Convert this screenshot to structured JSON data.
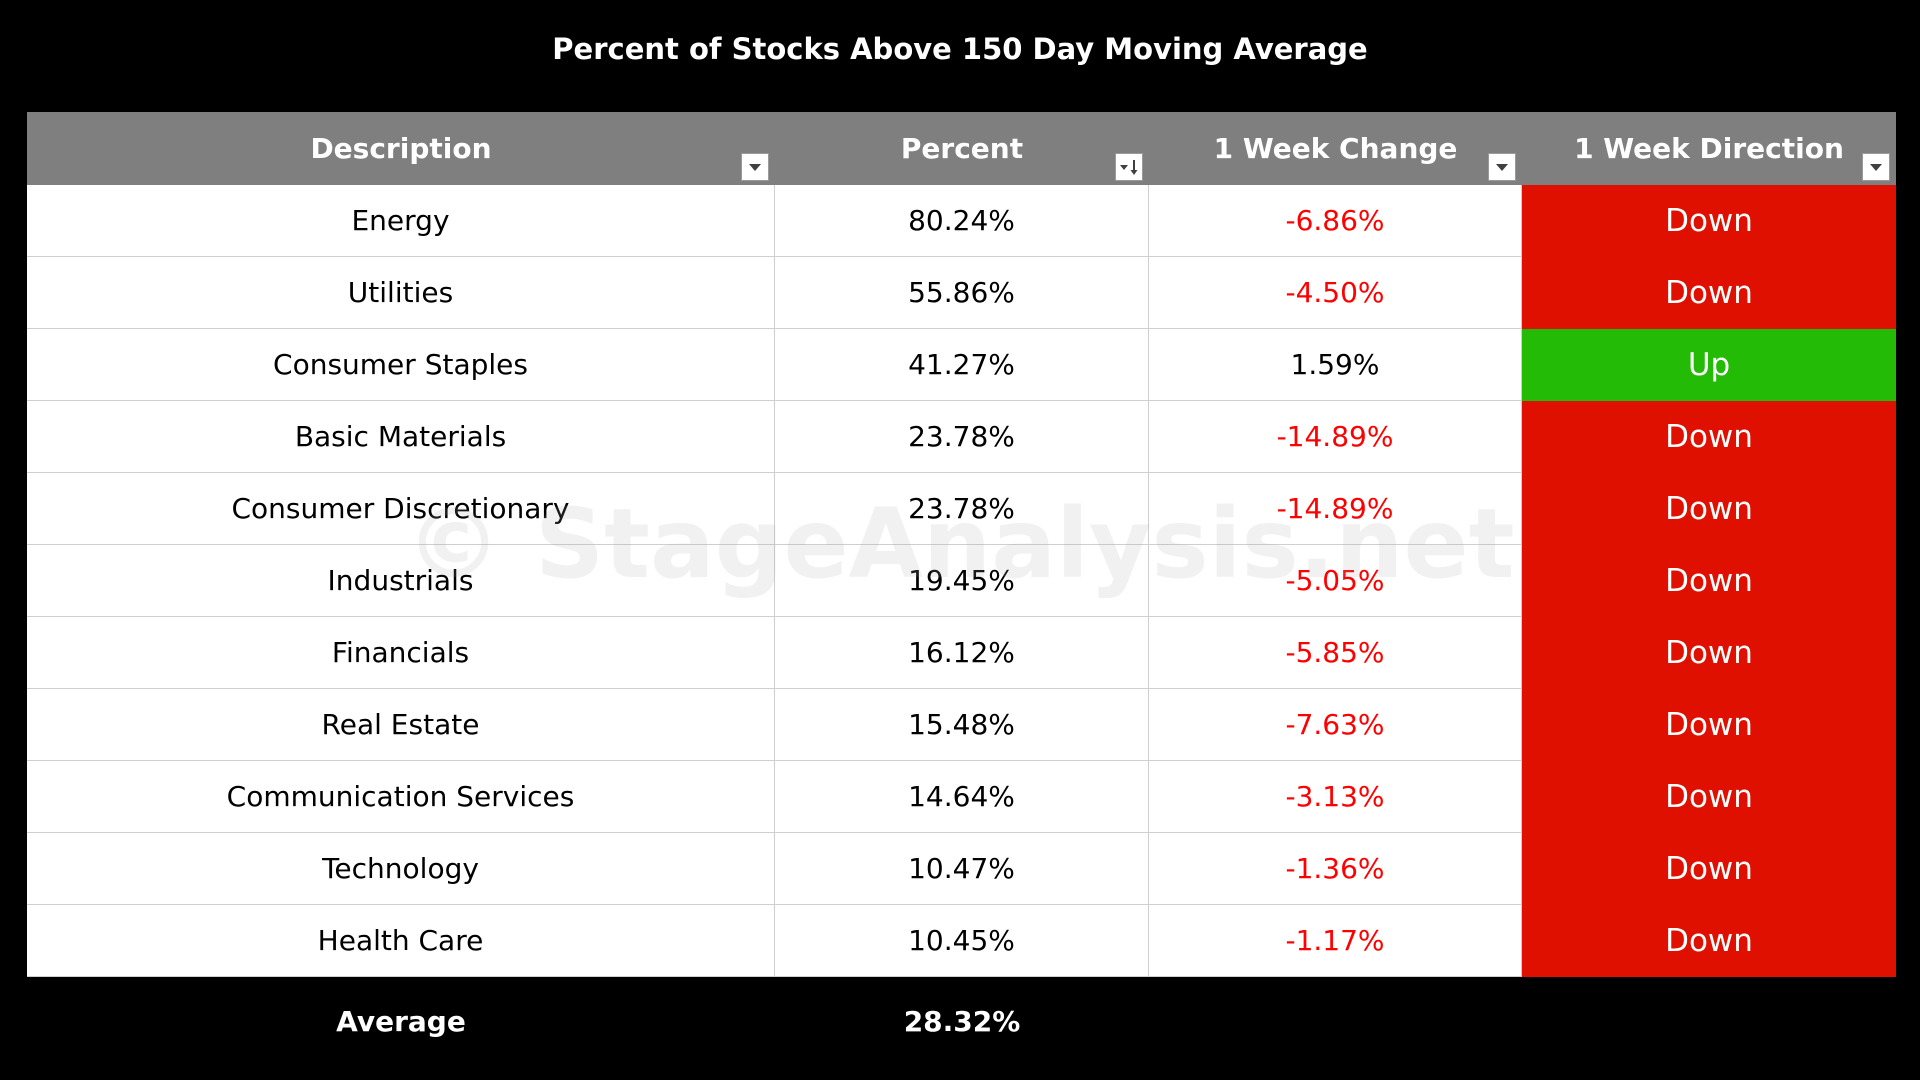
{
  "chart_data": {
    "type": "table",
    "title": "Percent of Stocks Above 150 Day Moving Average",
    "columns": [
      "Description",
      "Percent",
      "1 Week Change",
      "1 Week Direction"
    ],
    "rows": [
      {
        "description": "Energy",
        "percent": "80.24%",
        "change": "-6.86%",
        "direction": "Down"
      },
      {
        "description": "Utilities",
        "percent": "55.86%",
        "change": "-4.50%",
        "direction": "Down"
      },
      {
        "description": "Consumer Staples",
        "percent": "41.27%",
        "change": "1.59%",
        "direction": "Up"
      },
      {
        "description": "Basic Materials",
        "percent": "23.78%",
        "change": "-14.89%",
        "direction": "Down"
      },
      {
        "description": "Consumer Discretionary",
        "percent": "23.78%",
        "change": "-14.89%",
        "direction": "Down"
      },
      {
        "description": "Industrials",
        "percent": "19.45%",
        "change": "-5.05%",
        "direction": "Down"
      },
      {
        "description": "Financials",
        "percent": "16.12%",
        "change": "-5.85%",
        "direction": "Down"
      },
      {
        "description": "Real Estate",
        "percent": "15.48%",
        "change": "-7.63%",
        "direction": "Down"
      },
      {
        "description": "Communication Services",
        "percent": "14.64%",
        "change": "-3.13%",
        "direction": "Down"
      },
      {
        "description": "Technology",
        "percent": "10.47%",
        "change": "-1.36%",
        "direction": "Down"
      },
      {
        "description": "Health Care",
        "percent": "10.45%",
        "change": "-1.17%",
        "direction": "Down"
      }
    ],
    "average": {
      "label": "Average",
      "percent": "28.32%"
    },
    "watermark": "© StageAnalysis.net",
    "colors": {
      "header_bg": "#7f7f7f",
      "down_bg": "#e01000",
      "up_bg": "#23bb06",
      "negative_text": "#ff0000"
    },
    "filter_icons": [
      "filter-dropdown-icon",
      "sort-descending-icon",
      "filter-dropdown-icon",
      "filter-dropdown-icon"
    ]
  }
}
